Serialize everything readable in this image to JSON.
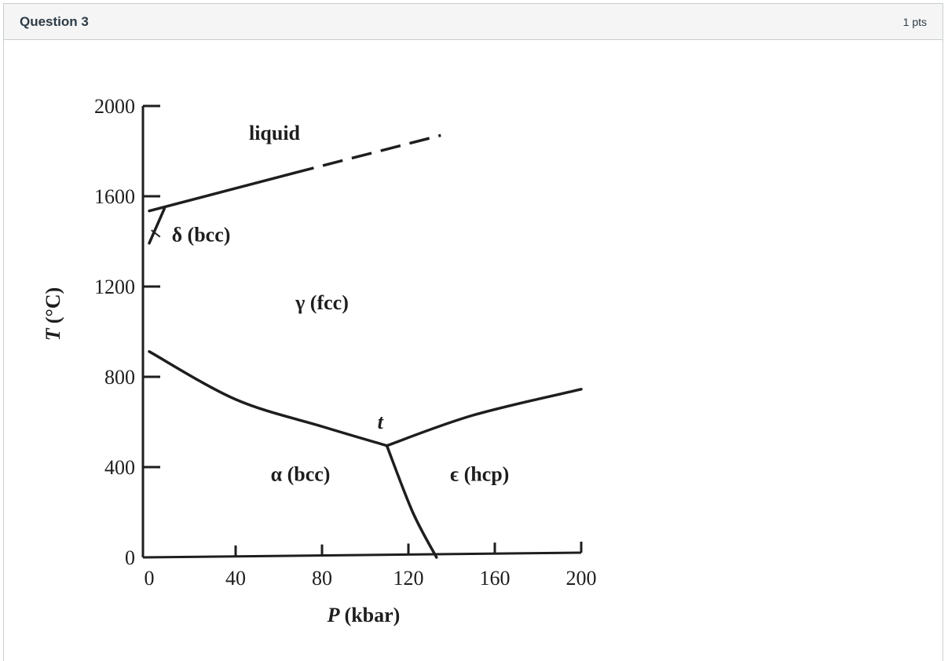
{
  "question": {
    "title": "Question 3",
    "points": "1 pts"
  },
  "chart_data": {
    "type": "line",
    "xlabel_var": "P",
    "xlabel_unit": "(kbar)",
    "ylabel_var": "T",
    "ylabel_unit": "(°C)",
    "xlim": [
      0,
      200
    ],
    "ylim": [
      0,
      2000
    ],
    "x_ticks": [
      "0",
      "40",
      "80",
      "120",
      "160",
      "200"
    ],
    "y_ticks": [
      "0",
      "400",
      "800",
      "1200",
      "1600",
      "2000"
    ],
    "grid": false,
    "series": [
      {
        "style": "solid",
        "points": [
          [
            0,
            1535
          ],
          [
            8,
            1555
          ],
          [
            67,
            1703
          ]
        ]
      },
      {
        "style": "dashed",
        "points": [
          [
            67,
            1703
          ],
          [
            135,
            1870
          ]
        ]
      },
      {
        "style": "solid",
        "points": [
          [
            0,
            1392
          ],
          [
            7,
            1545
          ]
        ]
      },
      {
        "style": "solid",
        "points": [
          [
            0,
            912
          ],
          [
            40,
            700
          ],
          [
            80,
            580
          ],
          [
            110,
            495
          ]
        ]
      },
      {
        "style": "solid",
        "points": [
          [
            110,
            495
          ],
          [
            150,
            630
          ],
          [
            200,
            745
          ]
        ]
      },
      {
        "style": "solid",
        "points": [
          [
            110,
            495
          ],
          [
            122,
            200
          ],
          [
            133,
            0
          ]
        ]
      }
    ],
    "region_labels": [
      {
        "text": "liquid",
        "x": 58,
        "y": 1850
      },
      {
        "text": "δ (bcc)",
        "x": 24,
        "y": 1400
      },
      {
        "text": "γ (fcc)",
        "x": 80,
        "y": 1100
      },
      {
        "text": "α (bcc)",
        "x": 70,
        "y": 340
      },
      {
        "text": "ϵ (hcp)",
        "x": 153,
        "y": 340
      },
      {
        "text": "t",
        "x": 107,
        "y": 570
      }
    ]
  }
}
